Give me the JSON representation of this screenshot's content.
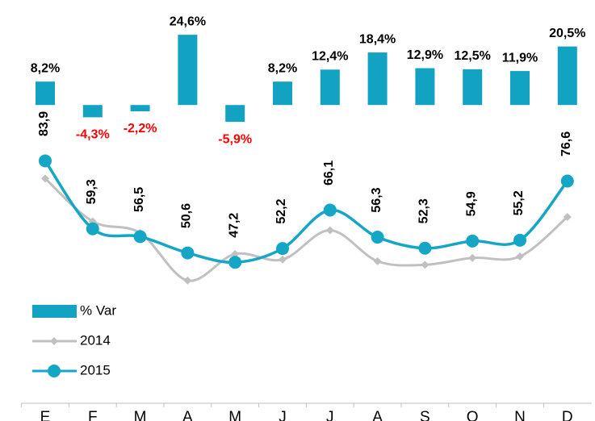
{
  "chart_data": {
    "type": "combo",
    "categories": [
      "E",
      "F",
      "M",
      "A",
      "M",
      "J",
      "J",
      "A",
      "S",
      "O",
      "N",
      "D"
    ],
    "ylim": [
      0,
      110
    ],
    "y2lim": [
      -20,
      30
    ],
    "negative_label_color": "#ff0000",
    "series": [
      {
        "name": "% Var",
        "type": "bar",
        "axis": "y2",
        "color": "#12a3c3",
        "values": [
          8.2,
          -4.3,
          -2.2,
          24.6,
          -5.9,
          8.2,
          12.4,
          18.4,
          12.9,
          12.5,
          11.9,
          20.5
        ],
        "value_labels": [
          "8,2%",
          "-4,3%",
          "-2,2%",
          "24,6%",
          "-5,9%",
          "8,2%",
          "12,4%",
          "18,4%",
          "12,9%",
          "12,5%",
          "11,9%",
          "20,5%"
        ]
      },
      {
        "name": "2014",
        "type": "line",
        "marker": "diamond",
        "color": "#c0c0c0",
        "values": [
          77.5,
          62.0,
          57.8,
          40.6,
          50.2,
          48.2,
          58.8,
          47.6,
          46.3,
          48.8,
          49.3,
          63.6
        ]
      },
      {
        "name": "2015",
        "type": "line",
        "marker": "circle",
        "color": "#15a6c6",
        "values": [
          83.9,
          59.3,
          56.5,
          50.6,
          47.2,
          52.2,
          66.1,
          56.3,
          52.3,
          54.9,
          55.2,
          76.6
        ],
        "value_labels": [
          "83,9",
          "59,3",
          "56,5",
          "50,6",
          "47,2",
          "52,2",
          "66,1",
          "56,3",
          "52,3",
          "54,9",
          "55,2",
          "76,6"
        ]
      }
    ]
  }
}
